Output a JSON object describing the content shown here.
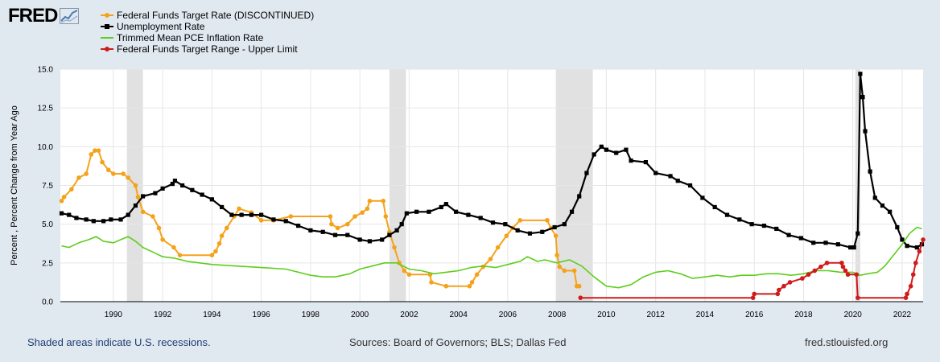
{
  "header": {
    "logo_text": "FRED"
  },
  "footer": {
    "recession_note": "Shaded areas indicate U.S. recessions.",
    "sources": "Sources: Board of Governors; BLS; Dallas Fed",
    "site": "fred.stlouisfed.org"
  },
  "chart_data": {
    "type": "line",
    "ylabel": "Percent , Percent Change from Year Ago",
    "xlim": [
      1987.85,
      2022.85
    ],
    "ylim": [
      0,
      15
    ],
    "grid": true,
    "legend_position": "top-left",
    "x_ticks": [
      1990,
      1992,
      1994,
      1996,
      1998,
      2000,
      2002,
      2004,
      2006,
      2008,
      2010,
      2012,
      2014,
      2016,
      2018,
      2020,
      2022
    ],
    "x_tick_labels": [
      "1990",
      "1992",
      "1994",
      "1996",
      "1998",
      "2000",
      "2002",
      "2004",
      "2006",
      "2008",
      "2010",
      "2012",
      "2014",
      "2016",
      "2018",
      "2020",
      "2022"
    ],
    "y_ticks": [
      0,
      2.5,
      5,
      7.5,
      10,
      12.5,
      15
    ],
    "y_tick_labels": [
      "0.0",
      "2.5",
      "5.0",
      "7.5",
      "10.0",
      "12.5",
      "15.0"
    ],
    "recessions": [
      [
        1990.55,
        1991.2
      ],
      [
        2001.2,
        2001.87
      ],
      [
        2007.95,
        2009.45
      ],
      [
        2020.1,
        2020.3
      ]
    ],
    "series": [
      {
        "name": "Federal Funds Target Rate (DISCONTINUED)",
        "color": "#f5a21b",
        "marker": "circle",
        "points": [
          [
            1987.9,
            6.5
          ],
          [
            1988.0,
            6.75
          ],
          [
            1988.3,
            7.25
          ],
          [
            1988.6,
            8.0
          ],
          [
            1988.9,
            8.25
          ],
          [
            1989.1,
            9.5
          ],
          [
            1989.25,
            9.75
          ],
          [
            1989.4,
            9.75
          ],
          [
            1989.55,
            9.0
          ],
          [
            1989.8,
            8.5
          ],
          [
            1990.0,
            8.25
          ],
          [
            1990.4,
            8.25
          ],
          [
            1990.6,
            8.0
          ],
          [
            1990.9,
            7.5
          ],
          [
            1991.0,
            6.75
          ],
          [
            1991.2,
            5.8
          ],
          [
            1991.6,
            5.5
          ],
          [
            1991.85,
            4.75
          ],
          [
            1992.0,
            4.0
          ],
          [
            1992.45,
            3.5
          ],
          [
            1992.7,
            3.0
          ],
          [
            1994.0,
            3.0
          ],
          [
            1994.15,
            3.25
          ],
          [
            1994.3,
            3.75
          ],
          [
            1994.4,
            4.25
          ],
          [
            1994.6,
            4.75
          ],
          [
            1994.9,
            5.5
          ],
          [
            1995.1,
            6.0
          ],
          [
            1995.6,
            5.75
          ],
          [
            1996.0,
            5.25
          ],
          [
            1996.5,
            5.25
          ],
          [
            1997.2,
            5.5
          ],
          [
            1998.8,
            5.5
          ],
          [
            1998.85,
            5.0
          ],
          [
            1999.1,
            4.75
          ],
          [
            1999.5,
            5.0
          ],
          [
            1999.8,
            5.5
          ],
          [
            2000.1,
            5.75
          ],
          [
            2000.3,
            6.0
          ],
          [
            2000.4,
            6.5
          ],
          [
            2000.95,
            6.5
          ],
          [
            2001.05,
            5.5
          ],
          [
            2001.2,
            4.5
          ],
          [
            2001.4,
            3.5
          ],
          [
            2001.6,
            2.5
          ],
          [
            2001.8,
            2.0
          ],
          [
            2002.0,
            1.75
          ],
          [
            2002.85,
            1.75
          ],
          [
            2002.9,
            1.25
          ],
          [
            2003.5,
            1.0
          ],
          [
            2004.45,
            1.0
          ],
          [
            2004.55,
            1.25
          ],
          [
            2004.75,
            1.75
          ],
          [
            2005.0,
            2.25
          ],
          [
            2005.3,
            2.75
          ],
          [
            2005.6,
            3.5
          ],
          [
            2005.95,
            4.25
          ],
          [
            2006.2,
            4.75
          ],
          [
            2006.5,
            5.25
          ],
          [
            2007.6,
            5.25
          ],
          [
            2007.75,
            4.75
          ],
          [
            2007.95,
            4.25
          ],
          [
            2008.0,
            3.0
          ],
          [
            2008.1,
            2.25
          ],
          [
            2008.3,
            2.0
          ],
          [
            2008.7,
            2.0
          ],
          [
            2008.8,
            1.0
          ],
          [
            2008.9,
            1.0
          ]
        ]
      },
      {
        "name": "Unemployment Rate",
        "color": "#000000",
        "marker": "square",
        "points": [
          [
            1987.9,
            5.7
          ],
          [
            1988.2,
            5.6
          ],
          [
            1988.5,
            5.4
          ],
          [
            1988.9,
            5.3
          ],
          [
            1989.2,
            5.2
          ],
          [
            1989.6,
            5.2
          ],
          [
            1989.9,
            5.3
          ],
          [
            1990.3,
            5.3
          ],
          [
            1990.6,
            5.6
          ],
          [
            1990.9,
            6.2
          ],
          [
            1991.2,
            6.8
          ],
          [
            1991.7,
            7.0
          ],
          [
            1992.0,
            7.3
          ],
          [
            1992.4,
            7.6
          ],
          [
            1992.5,
            7.8
          ],
          [
            1992.8,
            7.5
          ],
          [
            1993.2,
            7.2
          ],
          [
            1993.6,
            6.9
          ],
          [
            1994.0,
            6.6
          ],
          [
            1994.4,
            6.1
          ],
          [
            1994.8,
            5.6
          ],
          [
            1995.2,
            5.6
          ],
          [
            1995.6,
            5.6
          ],
          [
            1996.0,
            5.6
          ],
          [
            1996.5,
            5.3
          ],
          [
            1997.0,
            5.2
          ],
          [
            1997.5,
            4.9
          ],
          [
            1998.0,
            4.6
          ],
          [
            1998.5,
            4.5
          ],
          [
            1999.0,
            4.3
          ],
          [
            1999.5,
            4.3
          ],
          [
            2000.0,
            4.0
          ],
          [
            2000.4,
            3.9
          ],
          [
            2000.9,
            4.0
          ],
          [
            2001.2,
            4.3
          ],
          [
            2001.5,
            4.6
          ],
          [
            2001.7,
            5.0
          ],
          [
            2001.9,
            5.7
          ],
          [
            2002.3,
            5.8
          ],
          [
            2002.8,
            5.8
          ],
          [
            2003.3,
            6.1
          ],
          [
            2003.5,
            6.3
          ],
          [
            2003.9,
            5.8
          ],
          [
            2004.4,
            5.6
          ],
          [
            2004.9,
            5.4
          ],
          [
            2005.4,
            5.1
          ],
          [
            2005.9,
            5.0
          ],
          [
            2006.4,
            4.6
          ],
          [
            2006.9,
            4.4
          ],
          [
            2007.4,
            4.5
          ],
          [
            2007.9,
            4.8
          ],
          [
            2008.3,
            5.0
          ],
          [
            2008.6,
            5.8
          ],
          [
            2008.9,
            6.8
          ],
          [
            2009.2,
            8.3
          ],
          [
            2009.5,
            9.5
          ],
          [
            2009.8,
            10.0
          ],
          [
            2010.0,
            9.8
          ],
          [
            2010.4,
            9.6
          ],
          [
            2010.8,
            9.8
          ],
          [
            2011.0,
            9.1
          ],
          [
            2011.6,
            9.0
          ],
          [
            2012.0,
            8.3
          ],
          [
            2012.6,
            8.1
          ],
          [
            2012.9,
            7.8
          ],
          [
            2013.4,
            7.5
          ],
          [
            2013.9,
            6.7
          ],
          [
            2014.4,
            6.1
          ],
          [
            2014.9,
            5.6
          ],
          [
            2015.4,
            5.3
          ],
          [
            2015.9,
            5.0
          ],
          [
            2016.4,
            4.9
          ],
          [
            2016.9,
            4.7
          ],
          [
            2017.4,
            4.3
          ],
          [
            2017.9,
            4.1
          ],
          [
            2018.4,
            3.8
          ],
          [
            2018.9,
            3.8
          ],
          [
            2019.4,
            3.7
          ],
          [
            2019.9,
            3.5
          ],
          [
            2020.05,
            3.5
          ],
          [
            2020.2,
            4.4
          ],
          [
            2020.3,
            14.7
          ],
          [
            2020.4,
            13.2
          ],
          [
            2020.5,
            11.0
          ],
          [
            2020.7,
            8.4
          ],
          [
            2020.9,
            6.7
          ],
          [
            2021.2,
            6.2
          ],
          [
            2021.5,
            5.8
          ],
          [
            2021.8,
            4.8
          ],
          [
            2022.0,
            4.0
          ],
          [
            2022.2,
            3.6
          ],
          [
            2022.6,
            3.5
          ],
          [
            2022.8,
            3.7
          ]
        ]
      },
      {
        "name": "Trimmed Mean PCE Inflation Rate",
        "color": "#5dce1b",
        "marker": "none",
        "points": [
          [
            1987.9,
            3.6
          ],
          [
            1988.2,
            3.5
          ],
          [
            1988.6,
            3.8
          ],
          [
            1989.0,
            4.0
          ],
          [
            1989.3,
            4.2
          ],
          [
            1989.6,
            3.9
          ],
          [
            1990.0,
            3.8
          ],
          [
            1990.3,
            4.0
          ],
          [
            1990.6,
            4.2
          ],
          [
            1990.9,
            3.9
          ],
          [
            1991.2,
            3.5
          ],
          [
            1991.6,
            3.2
          ],
          [
            1992.0,
            2.9
          ],
          [
            1992.5,
            2.8
          ],
          [
            1993.0,
            2.6
          ],
          [
            1994.0,
            2.4
          ],
          [
            1995.0,
            2.3
          ],
          [
            1996.0,
            2.2
          ],
          [
            1997.0,
            2.1
          ],
          [
            1998.0,
            1.7
          ],
          [
            1998.5,
            1.6
          ],
          [
            1999.0,
            1.6
          ],
          [
            1999.6,
            1.8
          ],
          [
            2000.0,
            2.1
          ],
          [
            2000.5,
            2.3
          ],
          [
            2001.0,
            2.5
          ],
          [
            2001.5,
            2.5
          ],
          [
            2002.0,
            2.1
          ],
          [
            2002.5,
            2.0
          ],
          [
            2003.0,
            1.8
          ],
          [
            2003.5,
            1.9
          ],
          [
            2004.0,
            2.0
          ],
          [
            2004.5,
            2.2
          ],
          [
            2005.0,
            2.3
          ],
          [
            2005.5,
            2.2
          ],
          [
            2006.0,
            2.4
          ],
          [
            2006.5,
            2.6
          ],
          [
            2006.8,
            2.9
          ],
          [
            2007.2,
            2.6
          ],
          [
            2007.5,
            2.7
          ],
          [
            2008.0,
            2.5
          ],
          [
            2008.5,
            2.7
          ],
          [
            2009.0,
            2.3
          ],
          [
            2009.5,
            1.6
          ],
          [
            2010.0,
            1.0
          ],
          [
            2010.5,
            0.9
          ],
          [
            2011.0,
            1.1
          ],
          [
            2011.5,
            1.6
          ],
          [
            2012.0,
            1.9
          ],
          [
            2012.5,
            2.0
          ],
          [
            2013.0,
            1.8
          ],
          [
            2013.5,
            1.5
          ],
          [
            2014.0,
            1.6
          ],
          [
            2014.5,
            1.7
          ],
          [
            2015.0,
            1.6
          ],
          [
            2015.5,
            1.7
          ],
          [
            2016.0,
            1.7
          ],
          [
            2016.5,
            1.8
          ],
          [
            2017.0,
            1.8
          ],
          [
            2017.5,
            1.7
          ],
          [
            2018.0,
            1.8
          ],
          [
            2018.5,
            2.0
          ],
          [
            2019.0,
            2.0
          ],
          [
            2019.5,
            1.9
          ],
          [
            2020.0,
            1.9
          ],
          [
            2020.3,
            1.7
          ],
          [
            2020.6,
            1.8
          ],
          [
            2021.0,
            1.9
          ],
          [
            2021.3,
            2.3
          ],
          [
            2021.6,
            2.9
          ],
          [
            2022.0,
            3.7
          ],
          [
            2022.3,
            4.4
          ],
          [
            2022.6,
            4.8
          ],
          [
            2022.8,
            4.7
          ]
        ]
      },
      {
        "name": "Federal Funds Target Range - Upper Limit",
        "color": "#d11a1a",
        "marker": "circle",
        "points": [
          [
            2008.95,
            0.25
          ],
          [
            2015.95,
            0.25
          ],
          [
            2016.0,
            0.5
          ],
          [
            2016.95,
            0.5
          ],
          [
            2017.0,
            0.75
          ],
          [
            2017.2,
            1.0
          ],
          [
            2017.45,
            1.25
          ],
          [
            2017.95,
            1.5
          ],
          [
            2018.2,
            1.75
          ],
          [
            2018.45,
            2.0
          ],
          [
            2018.7,
            2.25
          ],
          [
            2018.95,
            2.5
          ],
          [
            2019.55,
            2.5
          ],
          [
            2019.6,
            2.25
          ],
          [
            2019.7,
            2.0
          ],
          [
            2019.8,
            1.75
          ],
          [
            2020.15,
            1.75
          ],
          [
            2020.2,
            0.25
          ],
          [
            2022.15,
            0.25
          ],
          [
            2022.2,
            0.5
          ],
          [
            2022.35,
            1.0
          ],
          [
            2022.45,
            1.75
          ],
          [
            2022.55,
            2.5
          ],
          [
            2022.7,
            3.25
          ],
          [
            2022.85,
            4.0
          ]
        ]
      }
    ]
  }
}
